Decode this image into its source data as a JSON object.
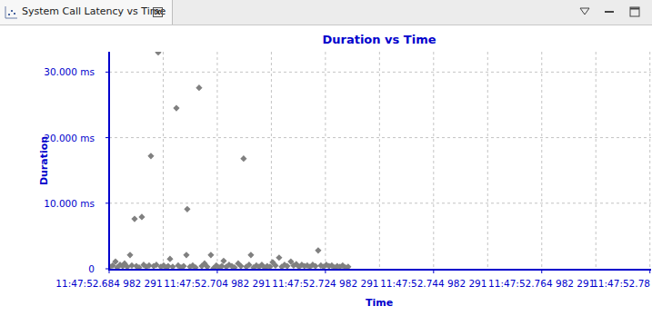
{
  "tab": {
    "title": "System Call Latency vs Time"
  },
  "chart_data": {
    "type": "scatter",
    "title": "Duration vs Time",
    "x_label": "Time",
    "y_label": "Duration",
    "xlim": [
      42472.684982291,
      42472.7852
    ],
    "ylim": [
      0,
      33.1
    ],
    "xticks": [
      {
        "value": 42472.684982291,
        "label": "11:47:52.684 982 291"
      },
      {
        "value": 42472.704982291,
        "label": "11:47:52.704 982 291"
      },
      {
        "value": 42472.724982291,
        "label": "11:47:52.724 982 291"
      },
      {
        "value": 42472.744982291,
        "label": "11:47:52.744 982 291"
      },
      {
        "value": 42472.764982291,
        "label": "11:47:52.764 982 291"
      },
      {
        "value": 42472.784982291,
        "label": "11:47:52.78"
      }
    ],
    "yticks": [
      {
        "value": 30,
        "label": "30.000 ms"
      },
      {
        "value": 20,
        "label": "20.000 ms"
      },
      {
        "value": 10,
        "label": "10.000 ms"
      },
      0
    ],
    "grid": true,
    "series": [
      {
        "color": "#808080",
        "marker": "diamond",
        "x": [
          42472.68515,
          42472.68565,
          42472.68616,
          42472.68649,
          42472.687,
          42472.6875,
          42472.68784,
          42472.68834,
          42472.68885,
          42472.68918,
          42472.68969,
          42472.69002,
          42472.69053,
          42472.69103,
          42472.69137,
          42472.69187,
          42472.69237,
          42472.69271,
          42472.69322,
          42472.69372,
          42472.69406,
          42472.69456,
          42472.69506,
          42472.69557,
          42472.6959,
          42472.69624,
          42472.69674,
          42472.69742,
          42472.69775,
          42472.69826,
          42472.69876,
          42472.69927,
          42472.69943,
          42472.69994,
          42472.70044,
          42472.70095,
          42472.70162,
          42472.70212,
          42472.70263,
          42472.70313,
          42472.7038,
          42472.70431,
          42472.70481,
          42472.70532,
          42472.70582,
          42472.70616,
          42472.70666,
          42472.70716,
          42472.70767,
          42472.70817,
          42472.70885,
          42472.70935,
          42472.70985,
          42472.71036,
          42472.71086,
          42472.7112,
          42472.7117,
          42472.71221,
          42472.71271,
          42472.71322,
          42472.71372,
          42472.71422,
          42472.71473,
          42472.71523,
          42472.71574,
          42472.71641,
          42472.71691,
          42472.71742,
          42472.71792,
          42472.71859,
          42472.7191,
          42472.7196,
          42472.72011,
          42472.72061,
          42472.72111,
          42472.72162,
          42472.72212,
          42472.72263,
          42472.72313,
          42472.72364,
          42472.72414,
          42472.72464,
          42472.72515,
          42472.72565,
          42472.72616,
          42472.72666,
          42472.72716,
          42472.72767,
          42472.72817,
          42472.72868,
          42472.72918
        ],
        "values": [
          0.3,
          0.5,
          1.1,
          0.2,
          0.6,
          0.4,
          0.8,
          0.3,
          2.1,
          0.5,
          7.6,
          0.4,
          0.2,
          7.9,
          0.6,
          0.3,
          0.5,
          17.2,
          0.4,
          0.6,
          33.0,
          0.3,
          0.5,
          0.2,
          0.4,
          1.5,
          0.3,
          24.5,
          0.5,
          0.2,
          0.4,
          2.1,
          9.1,
          0.3,
          0.5,
          0.2,
          27.6,
          0.4,
          0.8,
          0.3,
          2.1,
          0.1,
          0.5,
          0.2,
          0.4,
          1.2,
          0.3,
          0.6,
          0.4,
          0.2,
          0.8,
          0.4,
          16.8,
          0.3,
          0.6,
          2.1,
          0.2,
          0.5,
          0.3,
          0.6,
          0.2,
          0.4,
          0.3,
          1.0,
          0.5,
          1.7,
          0.3,
          0.6,
          0.4,
          1.1,
          0.5,
          0.7,
          0.3,
          0.6,
          0.4,
          0.5,
          0.3,
          0.6,
          0.4,
          2.8,
          0.5,
          0.3,
          0.6,
          0.4,
          0.5,
          0.2,
          0.4,
          0.3,
          0.5,
          0.2,
          0.3
        ]
      }
    ]
  }
}
